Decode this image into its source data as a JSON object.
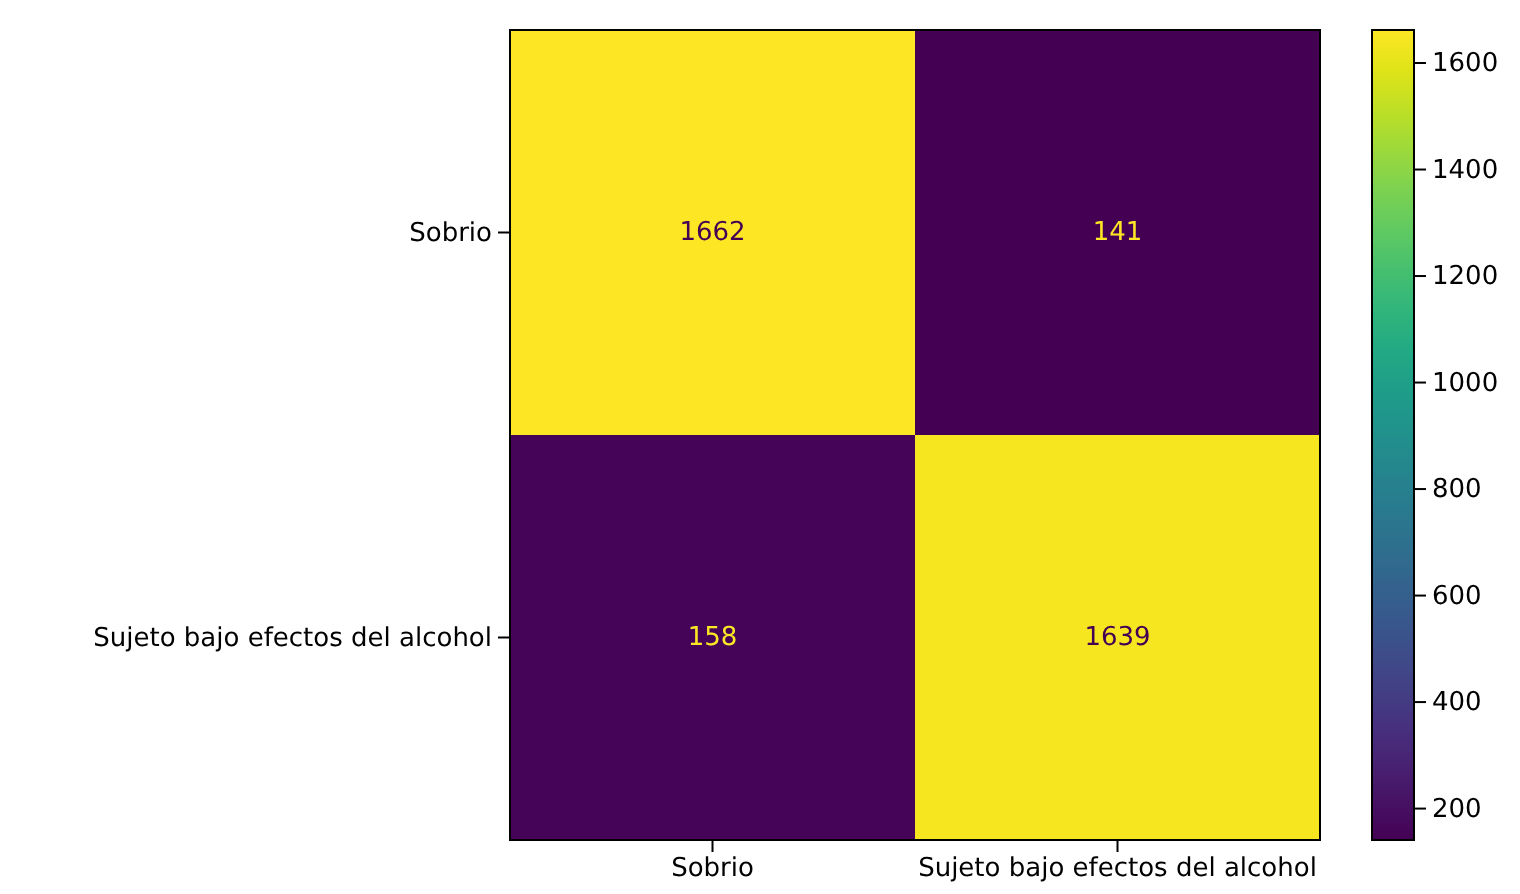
{
  "chart_data": {
    "type": "heatmap",
    "categories": [
      "Sobrio",
      "Sujeto bajo efectos del alcohol"
    ],
    "y_categories": [
      "Sobrio",
      "Sujeto bajo efectos del alcohol"
    ],
    "cells": [
      [
        1662,
        141
      ],
      [
        158,
        1639
      ]
    ],
    "data_labels": true,
    "clim": [
      141,
      1662
    ],
    "cticks": [
      200,
      400,
      600,
      800,
      1000,
      1200,
      1400,
      1600
    ]
  }
}
